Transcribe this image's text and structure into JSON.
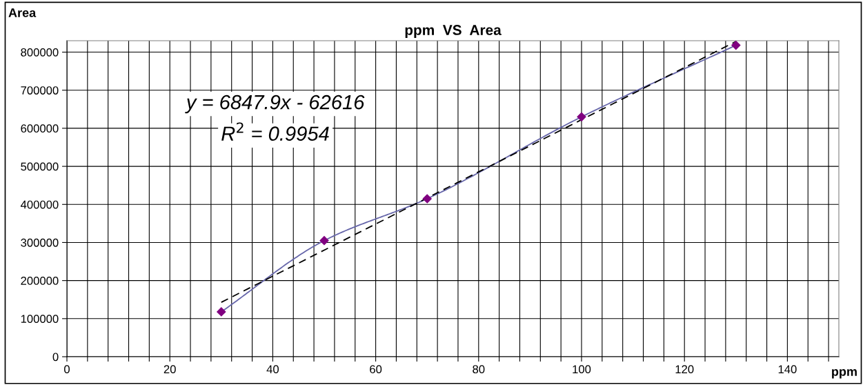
{
  "chart_data": {
    "type": "line",
    "title": "ppm  VS  Area",
    "xlabel": "ppm",
    "ylabel": "Area",
    "annotations": [
      "y = 6847.9x - 62616",
      "R$^{2}$ = 0.9954"
    ],
    "x": [
      30,
      50,
      70,
      100,
      130
    ],
    "series": [
      {
        "color": "#6666aa",
        "marker": "none",
        "line_style": "solid",
        "values": [
          118000,
          305000,
          415000,
          630000,
          818000
        ]
      },
      {
        "type": "scatter",
        "color": "#800080",
        "marker": "diamond",
        "values": [
          118000,
          305000,
          415000,
          630000,
          818000
        ]
      },
      {
        "type": "line",
        "x": [
          30,
          130
        ],
        "color": "#000000",
        "marker": "none",
        "line_style": "dashed",
        "values": [
          143000,
          828000
        ]
      }
    ],
    "xlim": [
      0,
      150
    ],
    "ylim": [
      0,
      830000
    ],
    "xticks": [
      0,
      {
        "value": 4,
        "label": null
      },
      {
        "value": 8,
        "label": null
      },
      {
        "value": 12,
        "label": null
      },
      {
        "value": 16,
        "label": null
      },
      20,
      {
        "value": 24,
        "label": null
      },
      {
        "value": 28,
        "label": null
      },
      {
        "value": 32,
        "label": null
      },
      {
        "value": 36,
        "label": null
      },
      40,
      {
        "value": 44,
        "label": null
      },
      {
        "value": 48,
        "label": null
      },
      {
        "value": 52,
        "label": null
      },
      {
        "value": 56,
        "label": null
      },
      60,
      {
        "value": 64,
        "label": null
      },
      {
        "value": 68,
        "label": null
      },
      {
        "value": 72,
        "label": null
      },
      {
        "value": 76,
        "label": null
      },
      80,
      {
        "value": 84,
        "label": null
      },
      {
        "value": 88,
        "label": null
      },
      {
        "value": 92,
        "label": null
      },
      {
        "value": 96,
        "label": null
      },
      100,
      {
        "value": 104,
        "label": null
      },
      {
        "value": 108,
        "label": null
      },
      {
        "value": 112,
        "label": null
      },
      {
        "value": 116,
        "label": null
      },
      120,
      {
        "value": 124,
        "label": null
      },
      {
        "value": 128,
        "label": null
      },
      {
        "value": 132,
        "label": null
      },
      {
        "value": 136,
        "label": null
      },
      140,
      {
        "value": 144,
        "label": null
      },
      {
        "value": 148,
        "label": null
      }
    ],
    "yticks": [
      0,
      100000,
      200000,
      300000,
      400000,
      500000,
      600000,
      700000,
      800000
    ],
    "grid": true,
    "legend": false
  }
}
